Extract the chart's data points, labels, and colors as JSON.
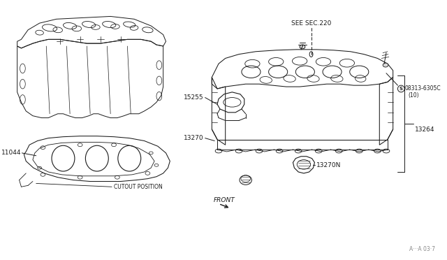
{
  "bg_color": "#ffffff",
  "line_color": "#1a1a1a",
  "fig_width": 6.4,
  "fig_height": 3.72,
  "dpi": 100,
  "labels": {
    "see_sec": "SEE SEC.220",
    "part_15255": "15255",
    "part_13270": "13270",
    "part_13270n": "13270N",
    "part_13264": "13264",
    "part_08313": "08313-6305C",
    "part_08313b": "(10)",
    "part_11044": "11044",
    "cutout": "CUTOUT POSITION",
    "front": "FRONT",
    "page_ref": "A···A 03·7",
    "s_mark": "S"
  },
  "label_fontsize": 6.5,
  "small_fontsize": 5.5
}
